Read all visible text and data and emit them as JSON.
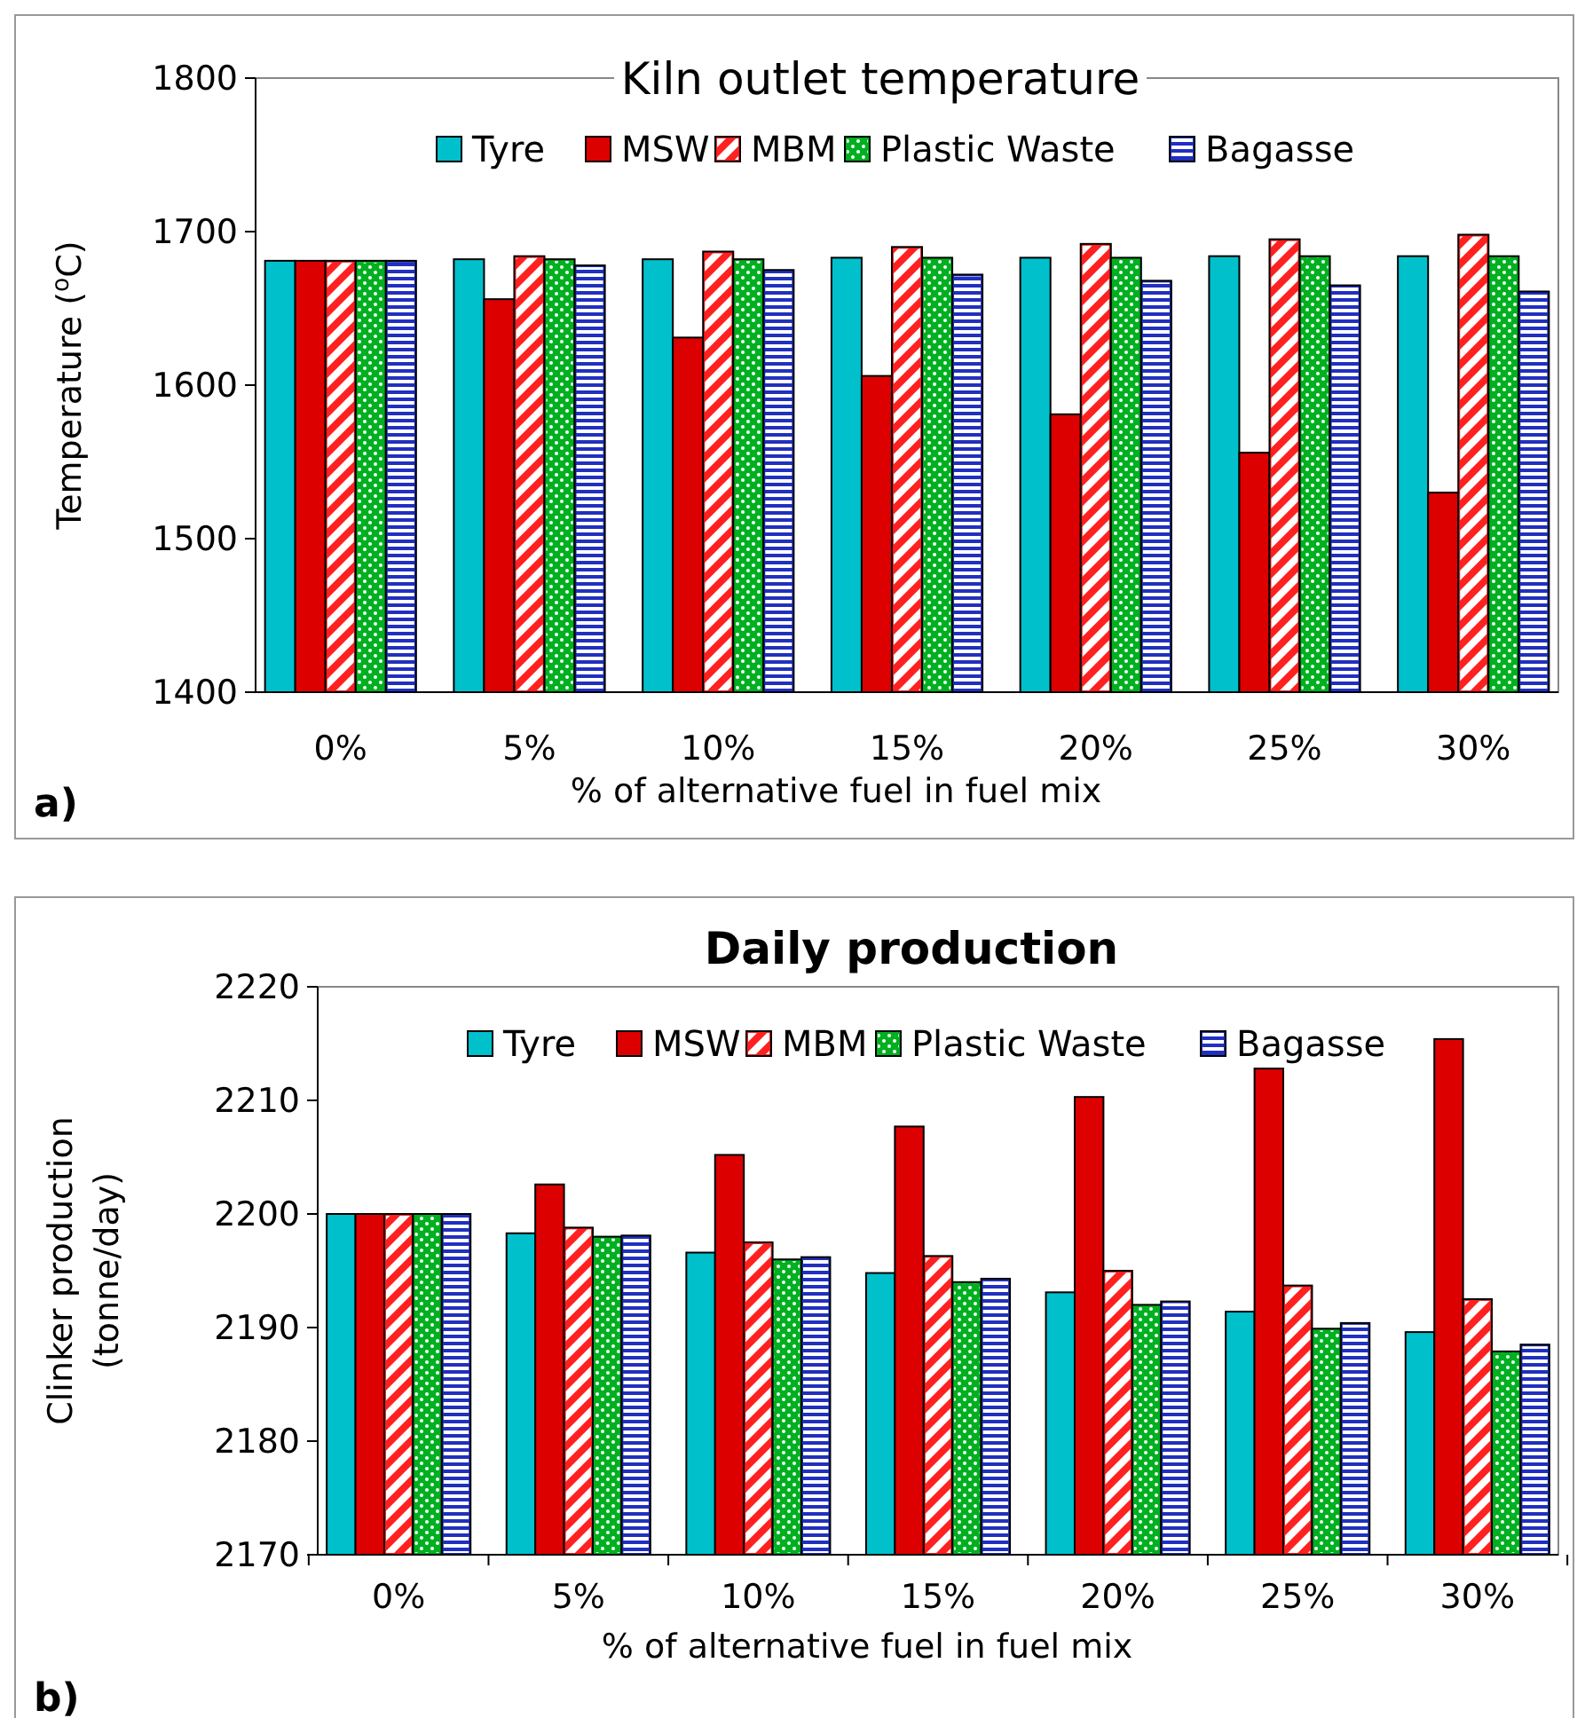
{
  "chart_data": [
    {
      "type": "bar",
      "title": "Kiln outlet temperature",
      "xlabel": "% of  alternative fuel in fuel mix",
      "ylabel": "Temperature ($^{o}$C)",
      "categories": [
        "0%",
        "5%",
        "10%",
        "15%",
        "20%",
        "25%",
        "30%"
      ],
      "series": [
        {
          "name": "Tyre",
          "color": "#00c0cc",
          "values": [
            1681,
            1682,
            1682,
            1683,
            1683,
            1684,
            1684
          ]
        },
        {
          "name": "MSW",
          "color": "#dd0000",
          "values": [
            1681,
            1656,
            1631,
            1606,
            1581,
            1556,
            1530
          ]
        },
        {
          "name": "MBM",
          "color": "#ff2020",
          "values": [
            1681,
            1684,
            1687,
            1690,
            1692,
            1695,
            1698
          ]
        },
        {
          "name": "Plastic Waste",
          "color": "#00b020",
          "values": [
            1681,
            1682,
            1682,
            1683,
            1683,
            1684,
            1684
          ]
        },
        {
          "name": "Bagasse",
          "color": "#2030c0",
          "values": [
            1681,
            1678,
            1675,
            1672,
            1668,
            1665,
            1661
          ]
        }
      ],
      "ylim": [
        1400,
        1800
      ],
      "yticks": [
        1400,
        1500,
        1600,
        1700,
        1800
      ],
      "legend": "top",
      "annotations": [
        "a)"
      ]
    },
    {
      "type": "bar",
      "title": "Daily production",
      "xlabel": "% of  alternative fuel in fuel mix",
      "ylabel": "Clinker production (tonne/day)",
      "categories": [
        "0%",
        "5%",
        "10%",
        "15%",
        "20%",
        "25%",
        "30%"
      ],
      "series": [
        {
          "name": "Tyre",
          "color": "#00c0cc",
          "values": [
            2200,
            2198.3,
            2196.6,
            2194.8,
            2193.1,
            2191.4,
            2189.6
          ]
        },
        {
          "name": "MSW",
          "color": "#dd0000",
          "values": [
            2200,
            2202.6,
            2205.2,
            2207.7,
            2210.3,
            2212.8,
            2215.4
          ]
        },
        {
          "name": "MBM",
          "color": "#ff2020",
          "values": [
            2200,
            2198.8,
            2197.5,
            2196.3,
            2195.0,
            2193.7,
            2192.5
          ]
        },
        {
          "name": "Plastic Waste",
          "color": "#00b020",
          "values": [
            2200,
            2198.0,
            2196.0,
            2194.0,
            2192.0,
            2189.9,
            2187.9
          ]
        },
        {
          "name": "Bagasse",
          "color": "#2030c0",
          "values": [
            2200,
            2198.1,
            2196.2,
            2194.3,
            2192.3,
            2190.4,
            2188.5
          ]
        }
      ],
      "ylim": [
        2170,
        2220
      ],
      "yticks": [
        2170,
        2180,
        2190,
        2200,
        2210,
        2220
      ],
      "legend": "top",
      "annotations": [
        "b)"
      ]
    }
  ]
}
